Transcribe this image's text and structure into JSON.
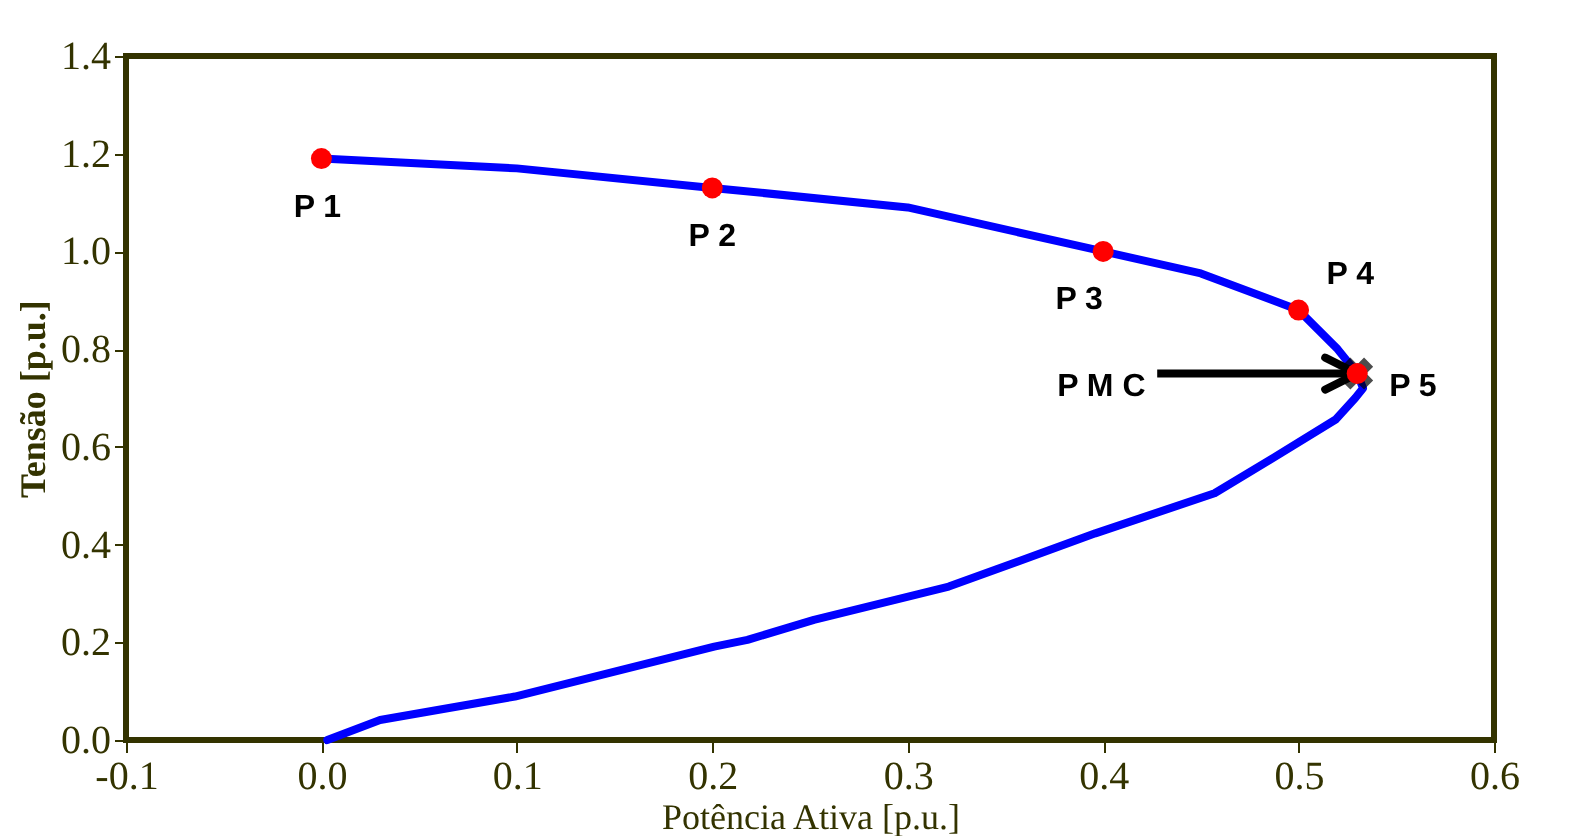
{
  "chart_data": {
    "type": "line",
    "xlabel": "Potência Ativa [p.u.]",
    "ylabel": "Tensão [p.u.]",
    "xlim": [
      -0.1,
      0.6
    ],
    "ylim": [
      0,
      1.4
    ],
    "xticks": [
      -0.1,
      {
        "value": 0,
        "label": "0.0"
      },
      0.1,
      0.2,
      0.3,
      0.4,
      0.5,
      0.6
    ],
    "yticks": [
      {
        "value": 0,
        "label": "0.0"
      },
      0.2,
      0.4,
      0.6,
      0.8,
      {
        "value": 1,
        "label": "1.0"
      },
      1.2,
      1.4
    ],
    "grid": false,
    "series": [
      {
        "type": "line",
        "color": "#0000ff",
        "line_style": "solid",
        "marker": "none",
        "x": [
          0.0,
          0.1,
          0.2,
          0.3,
          0.4,
          0.45,
          0.5,
          0.52,
          0.53,
          0.533,
          0.529,
          0.519,
          0.491,
          0.457,
          0.396,
          0.321,
          0.252,
          0.218,
          0.201,
          0.099,
          0.03,
          0.003
        ],
        "values": [
          1.19,
          1.17,
          1.13,
          1.09,
          1.0,
          0.955,
          0.88,
          0.8,
          0.75,
          0.72,
          0.7,
          0.656,
          0.587,
          0.505,
          0.423,
          0.314,
          0.246,
          0.205,
          0.191,
          0.089,
          0.041,
          0.0
        ]
      },
      {
        "type": "scatter",
        "color": "#000000",
        "marker": "cross",
        "x": [
          0.53
        ],
        "values": [
          0.75
        ]
      },
      {
        "type": "scatter",
        "color": "#ff0000",
        "marker": "circle",
        "x": [
          0.0,
          0.2,
          0.4,
          0.5,
          0.53
        ],
        "values": [
          1.19,
          1.13,
          1.0,
          0.88,
          0.75
        ]
      }
    ],
    "annotations": [
      {
        "text": "P 1",
        "x": 0.0,
        "y": 1.19
      },
      {
        "text": "P 2",
        "x": 0.2,
        "y": 1.13
      },
      {
        "text": "P 3",
        "x": 0.4,
        "y": 1.0
      },
      {
        "text": "P 4",
        "x": 0.5,
        "y": 0.88
      },
      {
        "text": "P 5",
        "x": 0.53,
        "y": 0.75
      },
      {
        "text": "P M C",
        "x": 0.53,
        "y": 0.75
      }
    ]
  }
}
